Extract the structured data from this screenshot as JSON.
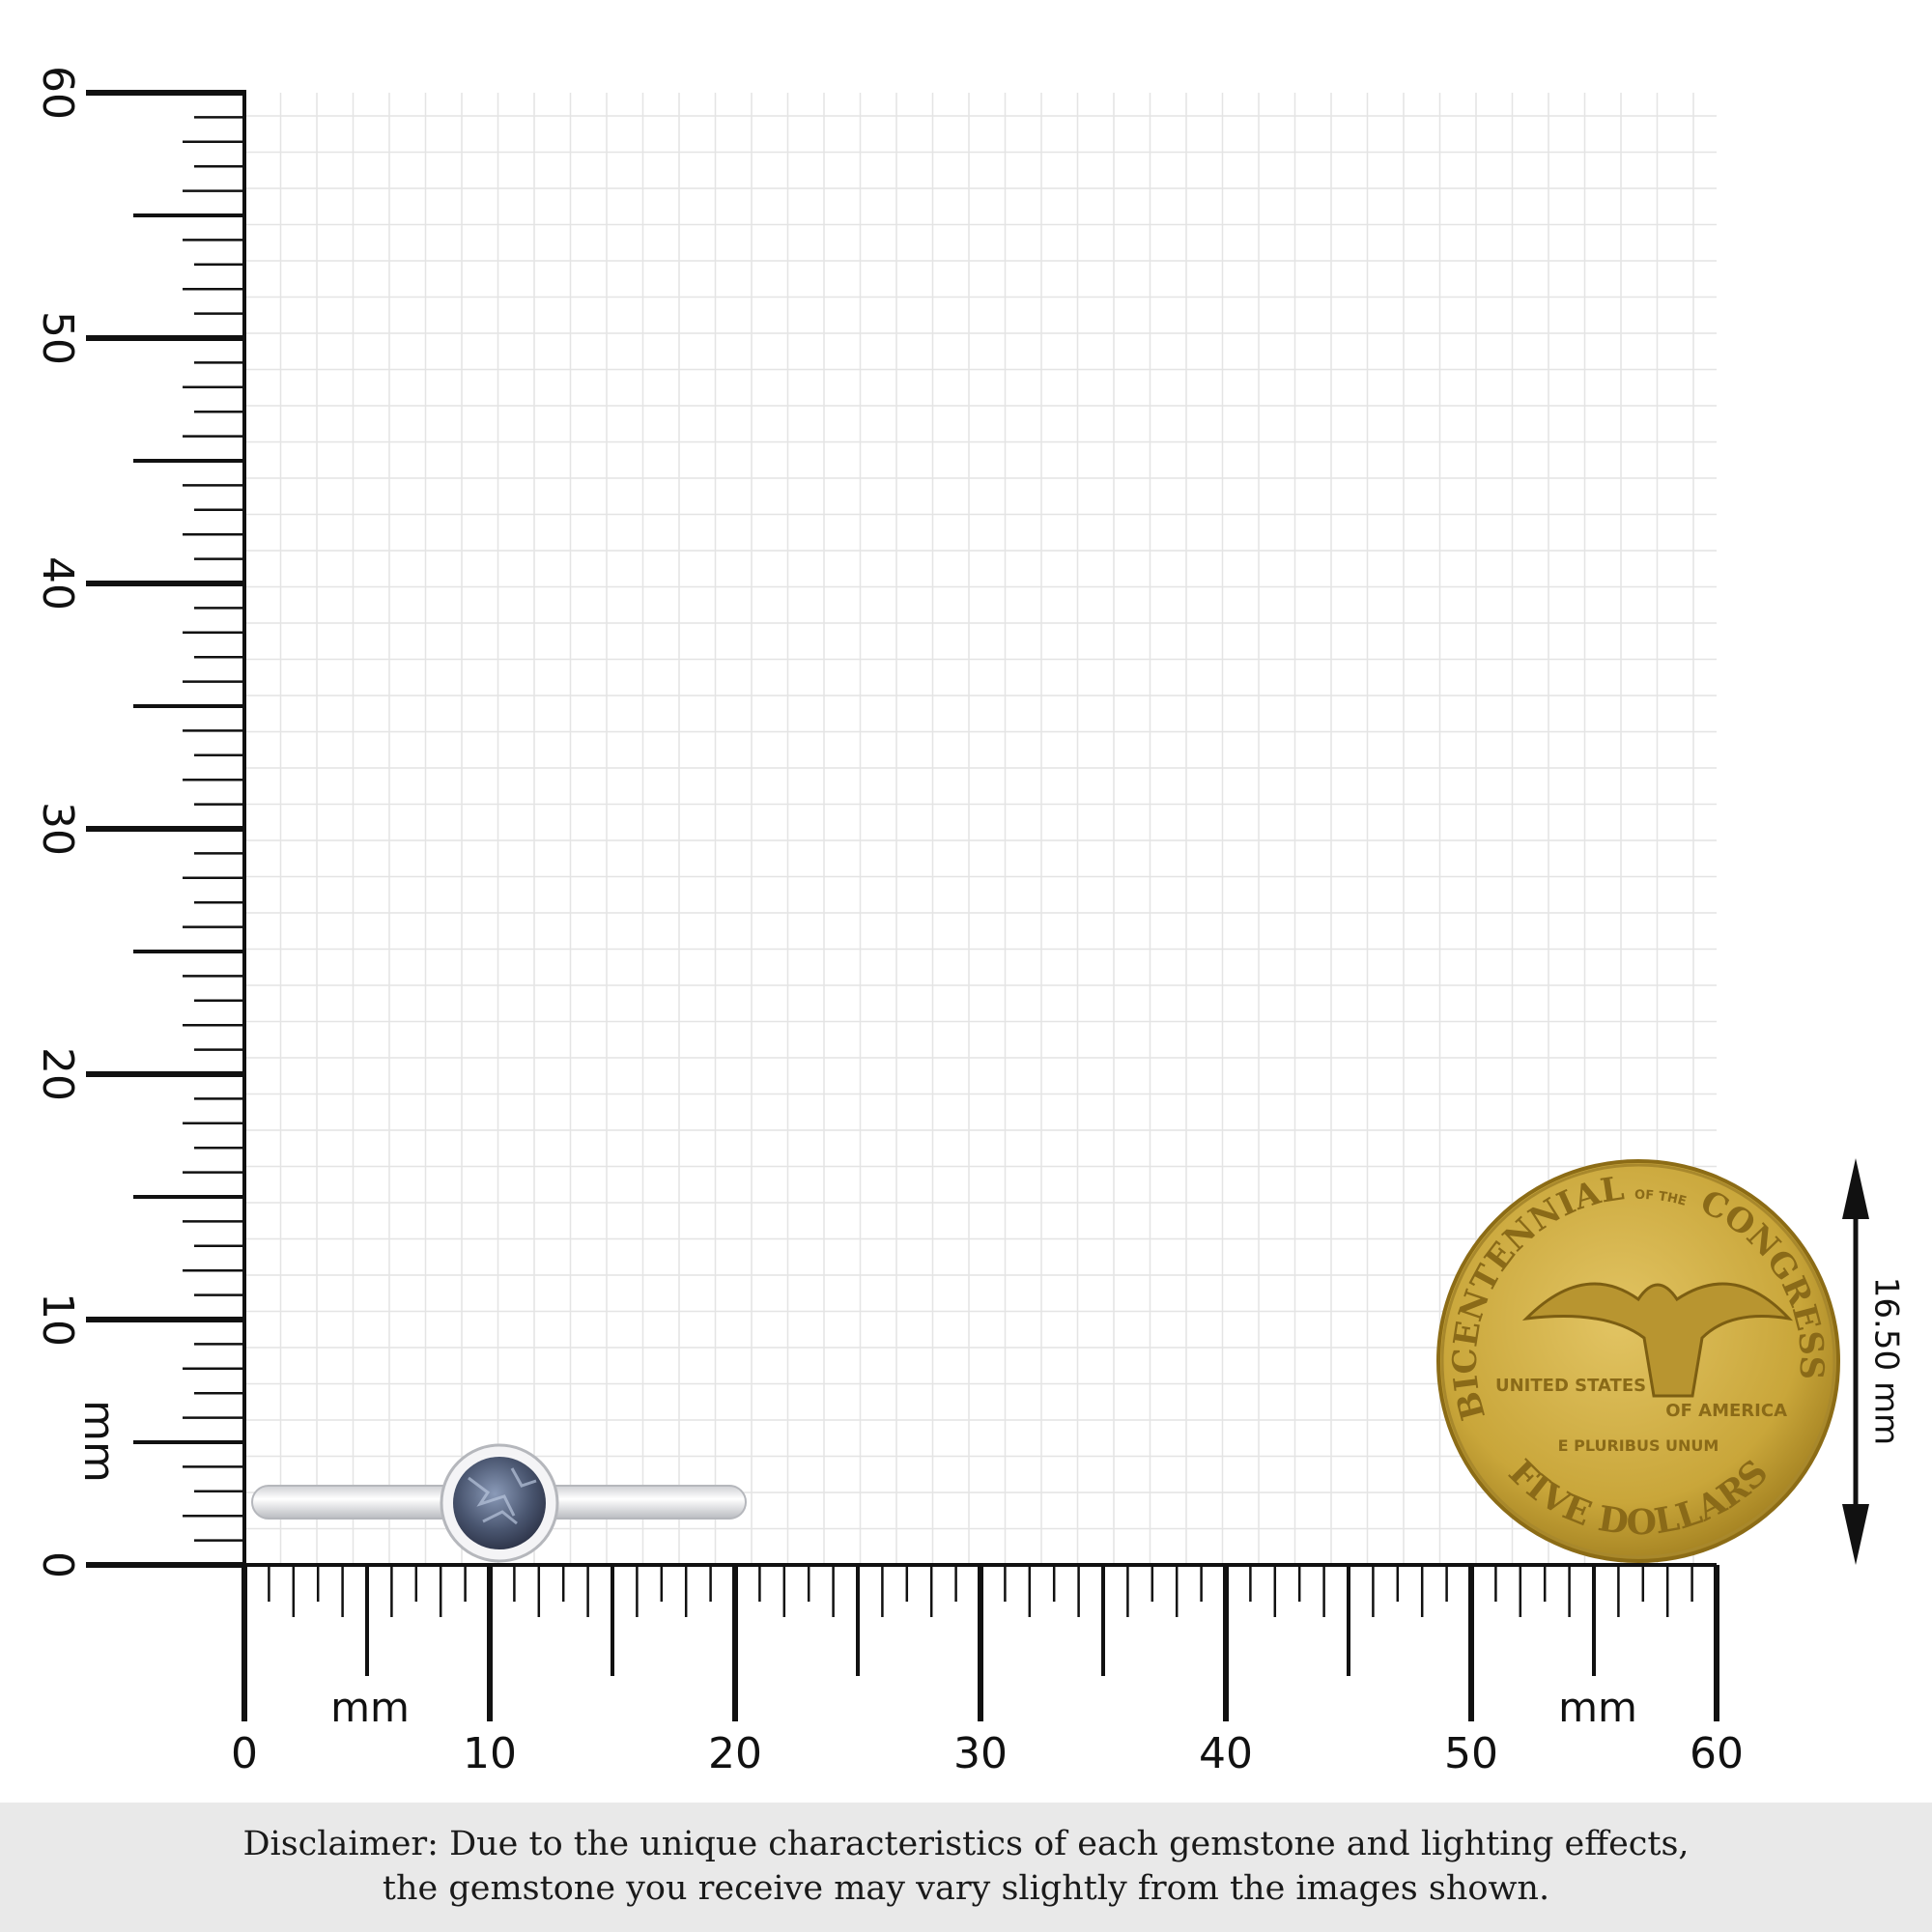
{
  "ruler": {
    "unit": "mm",
    "x_labels": [
      "0",
      "10",
      "20",
      "30",
      "40",
      "50",
      "60"
    ],
    "y_labels": [
      "0",
      "10",
      "20",
      "30",
      "40",
      "50",
      "60"
    ],
    "range_mm": [
      0,
      60
    ]
  },
  "coin": {
    "text_top": "BICENTENNIAL",
    "text_of_the": "OF THE",
    "text_congress": "CONGRESS",
    "text_left": "UNITED STATES",
    "text_right": "OF AMERICA",
    "motto": "E PLURIBUS UNUM",
    "denomination": "FIVE DOLLARS",
    "color": "#c9a63a"
  },
  "dimension": {
    "label": "16.50 mm"
  },
  "ring": {
    "stone_color": "#4a5670",
    "metal_color": "#e8e8ea"
  },
  "disclaimer": {
    "line1": "Disclaimer: Due to the unique characteristics of each gemstone and lighting effects,",
    "line2": "the gemstone you receive may vary slightly from the images shown."
  }
}
